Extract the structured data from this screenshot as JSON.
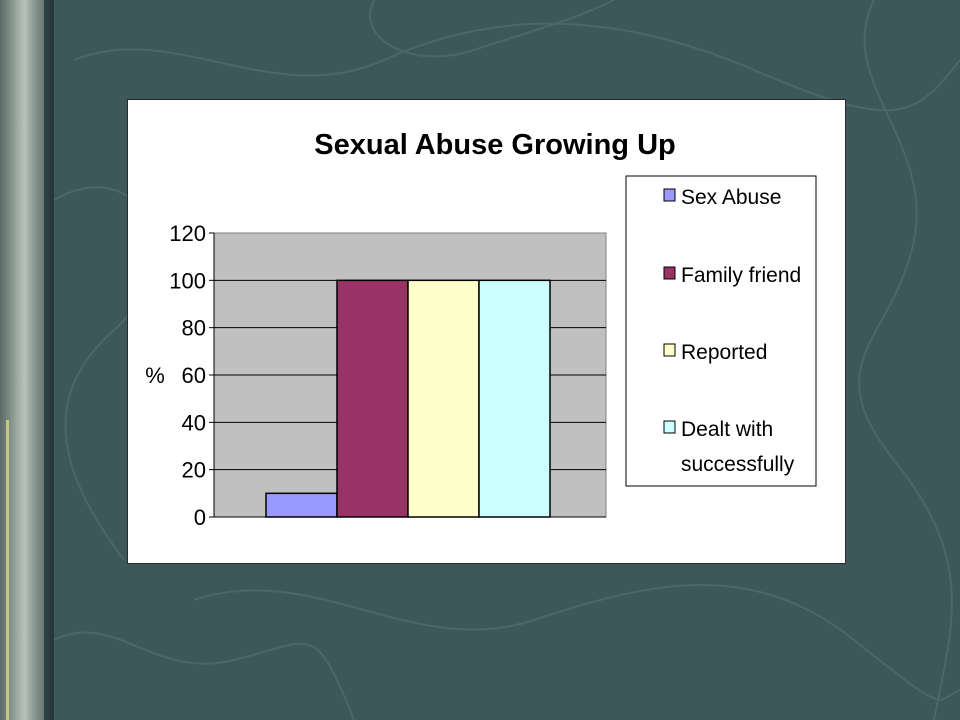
{
  "colors": {
    "slide_background": "#3d5858",
    "plot_area": "#c0c0c0",
    "chart_background": "#ffffff"
  },
  "chart_data": {
    "type": "bar",
    "title": "Sexual Abuse Growing Up",
    "ylabel": "%",
    "xlabel": "",
    "ylim": [
      0,
      120
    ],
    "yticks": [
      0,
      20,
      40,
      60,
      80,
      100,
      120
    ],
    "grid": true,
    "legend_position": "right",
    "series": [
      {
        "name": "Sex Abuse",
        "value": 10,
        "color": "#9999ff"
      },
      {
        "name": "Family friend",
        "value": 100,
        "color": "#993366"
      },
      {
        "name": "Reported",
        "value": 100,
        "color": "#ffffcc"
      },
      {
        "name": "Dealt with successfully",
        "value": 100,
        "color": "#ccffff",
        "legend_lines": [
          "Dealt with",
          "successfully"
        ]
      }
    ]
  }
}
